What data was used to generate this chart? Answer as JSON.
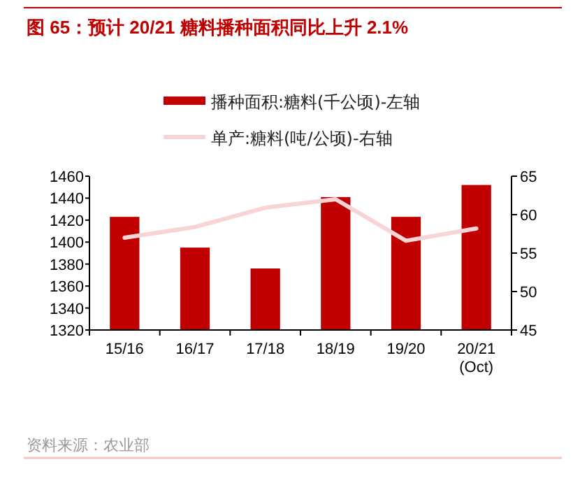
{
  "chart_data": {
    "type": "bar",
    "title": "图 65：预计 20/21 糖料播种面积同比上升 2.1%",
    "categories": [
      "15/16",
      "16/17",
      "17/18",
      "18/19",
      "19/20",
      "20/21 (Oct)"
    ],
    "series": [
      {
        "name": "播种面积:糖料(千公顷)-左轴",
        "color": "#c00000",
        "values": [
          1423,
          1395,
          1376,
          1441,
          1423,
          1452
        ]
      },
      {
        "name": "单产:糖料(吨/公顷)-右轴",
        "type": "line",
        "axis": "y2",
        "color": "#f8d4d4",
        "values": [
          57.0,
          58.4,
          60.9,
          62.0,
          56.6,
          58.2
        ]
      }
    ],
    "ylim": [
      1320,
      1460
    ],
    "yticks": [
      1320,
      1340,
      1360,
      1380,
      1400,
      1420,
      1440,
      1460
    ],
    "y2lim": [
      45,
      65
    ],
    "y2ticks": [
      45,
      50,
      55,
      60,
      65
    ],
    "legend": "top",
    "annotations": [
      "资料来源：农业部"
    ]
  }
}
